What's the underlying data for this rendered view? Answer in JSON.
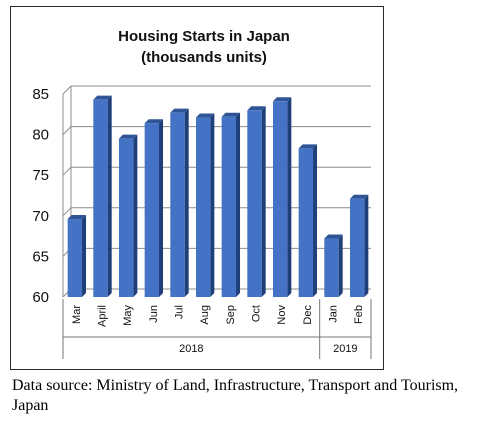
{
  "chart_data": {
    "type": "bar",
    "title": "Housing Starts in Japan",
    "subtitle": "(thousands units)",
    "categories": [
      "Mar",
      "April",
      "May",
      "Jun",
      "Jul",
      "Aug",
      "Sep",
      "Oct",
      "Nov",
      "Dec",
      "Jan",
      "Feb"
    ],
    "groups": [
      {
        "label": "2018",
        "categories": [
          "Mar",
          "April",
          "May",
          "Jun",
          "Jul",
          "Aug",
          "Sep",
          "Oct",
          "Nov",
          "Dec"
        ]
      },
      {
        "label": "2019",
        "categories": [
          "Jan",
          "Feb"
        ]
      }
    ],
    "values": [
      69.6,
      84.3,
      79.5,
      81.4,
      82.7,
      82.1,
      82.2,
      83.0,
      84.1,
      78.3,
      67.2,
      72.1
    ],
    "ylim": [
      60,
      85
    ],
    "yticks": [
      "60",
      "65",
      "70",
      "75",
      "80",
      "85"
    ],
    "xlabel": "",
    "ylabel": "",
    "grid": true,
    "colors": {
      "bar_front": "#4472C4",
      "bar_side": "#1F3F78",
      "bar_top": "#2F5597",
      "grid": "#8c8c8c"
    }
  },
  "source_note": "Data source: Ministry of Land, Infrastructure, Transport and Tourism, Japan"
}
